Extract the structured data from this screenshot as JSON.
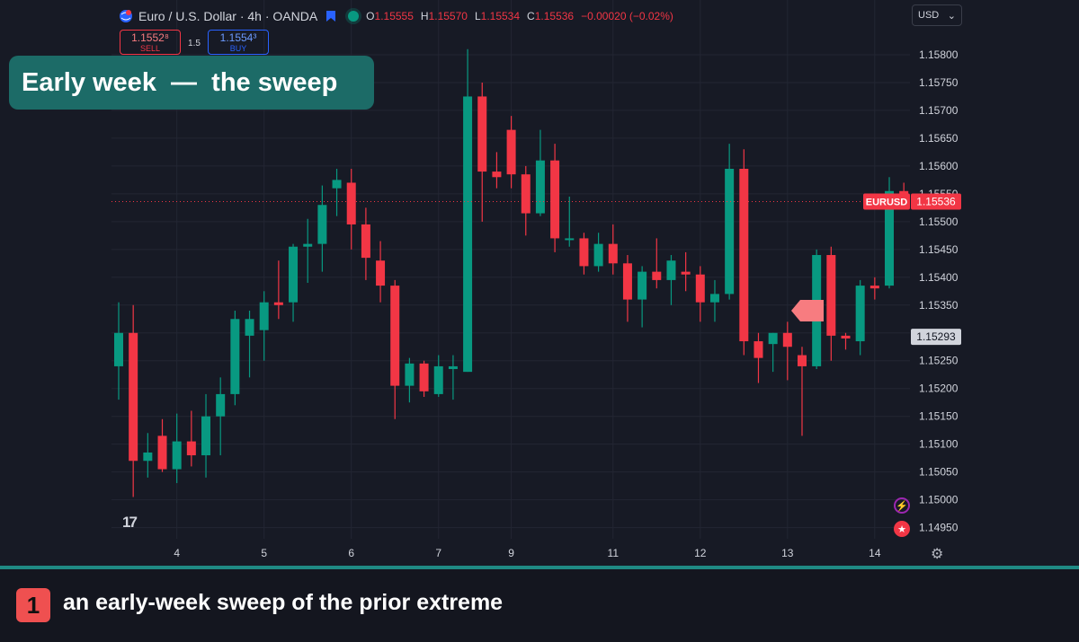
{
  "header": {
    "instrument": "Euro / U.S. Dollar · 4h · OANDA",
    "ohlc": {
      "o_label": "O",
      "o_value": "1.15555",
      "h_label": "H",
      "h_value": "1.15570",
      "l_label": "L",
      "l_value": "1.15534",
      "c_label": "C",
      "c_value": "1.15536",
      "change": "−0.00020 (−0.02%)"
    }
  },
  "trade": {
    "sell_price": "1.1552⁸",
    "sell_label": "SELL",
    "spread": "1.5",
    "buy_price": "1.1554³",
    "buy_label": "BUY"
  },
  "currency_selector": {
    "value": "USD"
  },
  "headline": "Early week  —  the sweep",
  "footer": {
    "badge": "1",
    "caption": "an early-week sweep of the prior extreme"
  },
  "colors": {
    "up": "#089981",
    "down": "#f23645",
    "background": "#171a25",
    "accent": "#1c6b67"
  },
  "icons": [
    "globe-icon",
    "bookmark-flag-icon",
    "market-open-dot-icon",
    "tradingview-logo-icon",
    "lightning-icon",
    "us-flag-icon",
    "gear-icon",
    "chevron-down-icon"
  ],
  "chart_data": {
    "type": "candlestick",
    "symbol": "EURUSD",
    "timeframe": "4h",
    "last_price": 1.15536,
    "last_price_label": "1.15536",
    "symbol_label": "EURUSD",
    "marked_price": 1.15293,
    "marked_price_label": "1.15293",
    "ylim": [
      1.1493,
      1.1585
    ],
    "y_ticks": [
      "1.15800",
      "1.15750",
      "1.15700",
      "1.15650",
      "1.15600",
      "1.15550",
      "1.15500",
      "1.15450",
      "1.15400",
      "1.15350",
      "1.15300",
      "1.15250",
      "1.15200",
      "1.15150",
      "1.15100",
      "1.15050",
      "1.15000",
      "1.14950"
    ],
    "x_ticks": [
      {
        "label": "4",
        "index": 4
      },
      {
        "label": "5",
        "index": 10
      },
      {
        "label": "6",
        "index": 16
      },
      {
        "label": "7",
        "index": 22
      },
      {
        "label": "9",
        "index": 27
      },
      {
        "label": "11",
        "index": 34
      },
      {
        "label": "12",
        "index": 40
      },
      {
        "label": "13",
        "index": 46
      },
      {
        "label": "14",
        "index": 52
      }
    ],
    "candles": [
      {
        "o": 1.1524,
        "h": 1.15355,
        "l": 1.1518,
        "c": 1.153
      },
      {
        "o": 1.153,
        "h": 1.1535,
        "l": 1.15005,
        "c": 1.1507
      },
      {
        "o": 1.1507,
        "h": 1.1512,
        "l": 1.1504,
        "c": 1.15085
      },
      {
        "o": 1.15115,
        "h": 1.15145,
        "l": 1.1505,
        "c": 1.15055
      },
      {
        "o": 1.15055,
        "h": 1.15155,
        "l": 1.1503,
        "c": 1.15105
      },
      {
        "o": 1.15105,
        "h": 1.1516,
        "l": 1.1506,
        "c": 1.1508
      },
      {
        "o": 1.1508,
        "h": 1.1519,
        "l": 1.1504,
        "c": 1.1515
      },
      {
        "o": 1.1515,
        "h": 1.1522,
        "l": 1.1508,
        "c": 1.1519
      },
      {
        "o": 1.1519,
        "h": 1.1534,
        "l": 1.1517,
        "c": 1.15325
      },
      {
        "o": 1.15295,
        "h": 1.1534,
        "l": 1.1522,
        "c": 1.15325
      },
      {
        "o": 1.15305,
        "h": 1.15375,
        "l": 1.1525,
        "c": 1.15355
      },
      {
        "o": 1.15355,
        "h": 1.1543,
        "l": 1.15325,
        "c": 1.1535
      },
      {
        "o": 1.15355,
        "h": 1.1546,
        "l": 1.1532,
        "c": 1.15455
      },
      {
        "o": 1.15455,
        "h": 1.15505,
        "l": 1.1539,
        "c": 1.1546
      },
      {
        "o": 1.1546,
        "h": 1.15565,
        "l": 1.1541,
        "c": 1.1553
      },
      {
        "o": 1.1556,
        "h": 1.15595,
        "l": 1.1551,
        "c": 1.15575
      },
      {
        "o": 1.1557,
        "h": 1.15595,
        "l": 1.1545,
        "c": 1.15495
      },
      {
        "o": 1.15495,
        "h": 1.15525,
        "l": 1.15395,
        "c": 1.15435
      },
      {
        "o": 1.1543,
        "h": 1.15465,
        "l": 1.15355,
        "c": 1.15385
      },
      {
        "o": 1.15385,
        "h": 1.15395,
        "l": 1.15145,
        "c": 1.15205
      },
      {
        "o": 1.15205,
        "h": 1.15255,
        "l": 1.15175,
        "c": 1.15245
      },
      {
        "o": 1.15245,
        "h": 1.1525,
        "l": 1.15185,
        "c": 1.15195
      },
      {
        "o": 1.1519,
        "h": 1.1526,
        "l": 1.15185,
        "c": 1.1524
      },
      {
        "o": 1.15235,
        "h": 1.1526,
        "l": 1.1518,
        "c": 1.1524
      },
      {
        "o": 1.1523,
        "h": 1.1581,
        "l": 1.1523,
        "c": 1.15725
      },
      {
        "o": 1.15725,
        "h": 1.1575,
        "l": 1.155,
        "c": 1.1559
      },
      {
        "o": 1.1559,
        "h": 1.15625,
        "l": 1.1556,
        "c": 1.1558
      },
      {
        "o": 1.15665,
        "h": 1.1569,
        "l": 1.1556,
        "c": 1.15585
      },
      {
        "o": 1.15585,
        "h": 1.156,
        "l": 1.15475,
        "c": 1.15515
      },
      {
        "o": 1.15515,
        "h": 1.15665,
        "l": 1.1551,
        "c": 1.1561
      },
      {
        "o": 1.1561,
        "h": 1.1564,
        "l": 1.15445,
        "c": 1.1547
      },
      {
        "o": 1.1547,
        "h": 1.15545,
        "l": 1.15455,
        "c": 1.1547
      },
      {
        "o": 1.1547,
        "h": 1.1548,
        "l": 1.15405,
        "c": 1.1542
      },
      {
        "o": 1.1542,
        "h": 1.1548,
        "l": 1.1541,
        "c": 1.1546
      },
      {
        "o": 1.1546,
        "h": 1.15495,
        "l": 1.15405,
        "c": 1.15425
      },
      {
        "o": 1.15425,
        "h": 1.1544,
        "l": 1.1532,
        "c": 1.1536
      },
      {
        "o": 1.1536,
        "h": 1.1542,
        "l": 1.1531,
        "c": 1.1541
      },
      {
        "o": 1.1541,
        "h": 1.1547,
        "l": 1.1538,
        "c": 1.15395
      },
      {
        "o": 1.15395,
        "h": 1.1544,
        "l": 1.1535,
        "c": 1.1543
      },
      {
        "o": 1.1541,
        "h": 1.15445,
        "l": 1.15375,
        "c": 1.15405
      },
      {
        "o": 1.15405,
        "h": 1.1542,
        "l": 1.1532,
        "c": 1.15355
      },
      {
        "o": 1.15355,
        "h": 1.15395,
        "l": 1.1532,
        "c": 1.1537
      },
      {
        "o": 1.1537,
        "h": 1.1564,
        "l": 1.1536,
        "c": 1.15595
      },
      {
        "o": 1.15595,
        "h": 1.1563,
        "l": 1.1526,
        "c": 1.15285
      },
      {
        "o": 1.15285,
        "h": 1.153,
        "l": 1.1521,
        "c": 1.15255
      },
      {
        "o": 1.1528,
        "h": 1.153,
        "l": 1.1523,
        "c": 1.153
      },
      {
        "o": 1.153,
        "h": 1.1532,
        "l": 1.15215,
        "c": 1.15275
      },
      {
        "o": 1.1526,
        "h": 1.15275,
        "l": 1.15115,
        "c": 1.1524
      },
      {
        "o": 1.1524,
        "h": 1.1545,
        "l": 1.15235,
        "c": 1.1544
      },
      {
        "o": 1.1544,
        "h": 1.15455,
        "l": 1.1525,
        "c": 1.15295
      },
      {
        "o": 1.15295,
        "h": 1.153,
        "l": 1.1527,
        "c": 1.1529
      },
      {
        "o": 1.15285,
        "h": 1.15395,
        "l": 1.1526,
        "c": 1.15385
      },
      {
        "o": 1.15385,
        "h": 1.154,
        "l": 1.1536,
        "c": 1.1538
      },
      {
        "o": 1.15385,
        "h": 1.1558,
        "l": 1.1538,
        "c": 1.15555
      },
      {
        "o": 1.15555,
        "h": 1.1557,
        "l": 1.15534,
        "c": 1.15536
      }
    ],
    "grid": true,
    "legend": "none"
  }
}
